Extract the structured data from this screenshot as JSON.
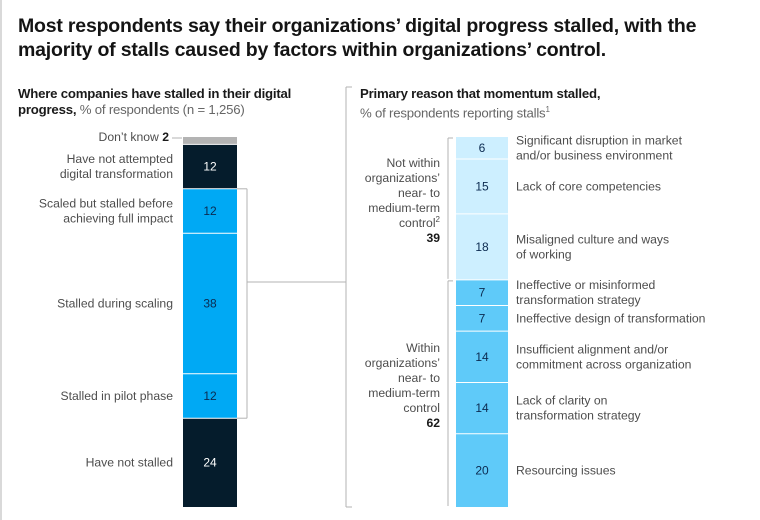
{
  "title": "Most respondents say their organizations’ digital progress stalled, with the majority of stalls caused by factors within organizations’ control.",
  "colors": {
    "dont_know": "#b3b3b3",
    "dark_navy": "#051c2c",
    "bright_blue": "#00a9f4",
    "pale_blue": "#cdefff",
    "mid_blue": "#5fcaf9",
    "bracket": "#b3b3b3",
    "label_text": "#4d4d4d"
  },
  "chart_data": [
    {
      "type": "bar",
      "stacked": true,
      "title_bold": "Where companies have stalled in their digital progress,",
      "title_light": "% of respondents (n = 1,256)",
      "unit": "% of respondents",
      "segments": [
        {
          "label": "Don’t know",
          "value": 2,
          "color_key": "dont_know",
          "inline_value": true
        },
        {
          "label": "Have not attempted digital transformation",
          "label_lines": [
            "Have not attempted",
            "digital transformation"
          ],
          "value": 12,
          "color_key": "dark_navy"
        },
        {
          "label": "Scaled but stalled before achieving full impact",
          "label_lines": [
            "Scaled but stalled before",
            "achieving full impact"
          ],
          "value": 12,
          "color_key": "bright_blue"
        },
        {
          "label": "Stalled during scaling",
          "label_lines": [
            "Stalled during scaling"
          ],
          "value": 38,
          "color_key": "bright_blue"
        },
        {
          "label": "Stalled in pilot phase",
          "label_lines": [
            "Stalled in pilot phase"
          ],
          "value": 12,
          "color_key": "bright_blue"
        },
        {
          "label": "Have not stalled",
          "label_lines": [
            "Have not stalled"
          ],
          "value": 24,
          "color_key": "dark_navy"
        }
      ],
      "bracket_spans": [
        "Scaled but stalled before achieving full impact",
        "Stalled in pilot phase"
      ]
    },
    {
      "type": "bar",
      "stacked": true,
      "title_bold": "Primary reason that momentum stalled,",
      "title_light": "% of respondents reporting stalls",
      "title_footnote": "1",
      "unit": "% of respondents reporting stalls",
      "groups": [
        {
          "label_lines": [
            "Not within",
            "organizations’",
            "near- to",
            "medium-term",
            "control"
          ],
          "footnote": "2",
          "total": 39,
          "color_key": "pale_blue",
          "segments": [
            {
              "label_lines": [
                "Significant disruption in market",
                "and/or business environment"
              ],
              "value": 6
            },
            {
              "label_lines": [
                "Lack of core competencies"
              ],
              "value": 15
            },
            {
              "label_lines": [
                "Misaligned culture and ways",
                "of working"
              ],
              "value": 18
            }
          ]
        },
        {
          "label_lines": [
            "Within",
            "organizations’",
            "near- to",
            "medium-term",
            "control"
          ],
          "footnote": "",
          "total": 62,
          "color_key": "mid_blue",
          "segments": [
            {
              "label_lines": [
                "Ineffective or misinformed",
                "transformation strategy"
              ],
              "value": 7
            },
            {
              "label_lines": [
                "Ineffective design of transformation"
              ],
              "value": 7
            },
            {
              "label_lines": [
                "Insufficient alignment and/or",
                "commitment across organization"
              ],
              "value": 14
            },
            {
              "label_lines": [
                "Lack of clarity on",
                "transformation strategy"
              ],
              "value": 14
            },
            {
              "label_lines": [
                "Resourcing issues"
              ],
              "value": 20
            }
          ]
        }
      ]
    }
  ]
}
